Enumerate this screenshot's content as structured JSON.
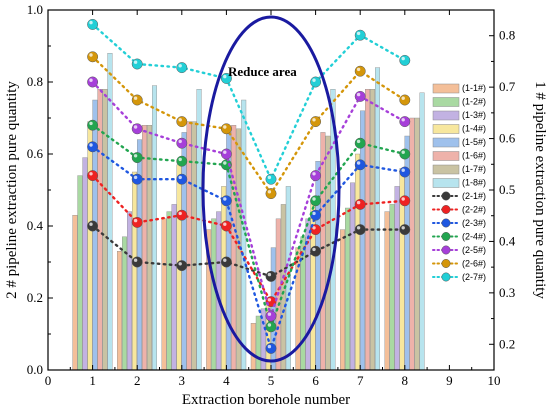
{
  "chart_data": {
    "type": "bar+line",
    "x_ticks": [
      "0",
      "1",
      "2",
      "3",
      "4",
      "5",
      "6",
      "7",
      "8",
      "9",
      "10"
    ],
    "y_left_ticks": [
      "0.0",
      "0.2",
      "0.4",
      "0.6",
      "0.8",
      "1.0"
    ],
    "y_right_ticks": [
      "0.2",
      "0.3",
      "0.4",
      "0.5",
      "0.6",
      "0.7",
      "0.8"
    ],
    "xlabel": "Extraction borehole number",
    "ylabel_left": "2 # pipeline extraction pure quantity",
    "ylabel_right": "1 # pipeline extraction pure quantity",
    "xlim": [
      0,
      10
    ],
    "ylim_left": [
      0,
      1.0
    ],
    "ylim_right": [
      0.15,
      0.85
    ],
    "annotation": "Reduce area",
    "categories": [
      1,
      2,
      3,
      4,
      5,
      6,
      7,
      8
    ],
    "bar_series": [
      {
        "name": "(1-1#)",
        "color": "#f4bf99",
        "values": [
          0.43,
          0.33,
          0.42,
          0.39,
          0.13,
          0.34,
          0.39,
          0.44
        ]
      },
      {
        "name": "(1-2#)",
        "color": "#a9d9a2",
        "values": [
          0.54,
          0.37,
          0.44,
          0.42,
          0.15,
          0.37,
          0.45,
          0.46
        ]
      },
      {
        "name": "(1-3#)",
        "color": "#c2b2e2",
        "values": [
          0.59,
          0.44,
          0.46,
          0.44,
          0.17,
          0.42,
          0.52,
          0.51
        ]
      },
      {
        "name": "(1-4#)",
        "color": "#f7e79d",
        "values": [
          0.69,
          0.55,
          0.57,
          0.51,
          0.2,
          0.47,
          0.6,
          0.56
        ]
      },
      {
        "name": "(1-5#)",
        "color": "#9fc1ec",
        "values": [
          0.75,
          0.64,
          0.66,
          0.66,
          0.34,
          0.58,
          0.72,
          0.65
        ]
      },
      {
        "name": "(1-6#)",
        "color": "#eeb2aa",
        "values": [
          0.78,
          0.68,
          0.69,
          0.68,
          0.42,
          0.66,
          0.78,
          0.7
        ]
      },
      {
        "name": "(1-7#)",
        "color": "#c9c3a3",
        "values": [
          0.78,
          0.68,
          0.69,
          0.67,
          0.46,
          0.65,
          0.78,
          0.7
        ]
      },
      {
        "name": "(1-8#)",
        "color": "#b7e4ee",
        "values": [
          0.88,
          0.79,
          0.78,
          0.75,
          0.51,
          0.78,
          0.84,
          0.77
        ]
      }
    ],
    "line_series": [
      {
        "name": "(2-1#)",
        "color": "#3a3a3a",
        "values": [
          0.4,
          0.3,
          0.29,
          0.3,
          0.26,
          0.33,
          0.39,
          0.39
        ]
      },
      {
        "name": "(2-2#)",
        "color": "#ee2222",
        "values": [
          0.54,
          0.41,
          0.43,
          0.4,
          0.19,
          0.39,
          0.46,
          0.47
        ]
      },
      {
        "name": "(2-3#)",
        "color": "#1f57e0",
        "values": [
          0.62,
          0.53,
          0.53,
          0.47,
          0.06,
          0.43,
          0.57,
          0.55
        ]
      },
      {
        "name": "(2-4#)",
        "color": "#22a550",
        "values": [
          0.68,
          0.59,
          0.58,
          0.57,
          0.12,
          0.47,
          0.63,
          0.6
        ]
      },
      {
        "name": "(2-5#)",
        "color": "#a63fd9",
        "values": [
          0.8,
          0.67,
          0.63,
          0.6,
          0.15,
          0.54,
          0.76,
          0.69
        ]
      },
      {
        "name": "(2-6#)",
        "color": "#d4960a",
        "values": [
          0.87,
          0.75,
          0.69,
          0.67,
          0.49,
          0.69,
          0.83,
          0.75
        ]
      },
      {
        "name": "(2-7#)",
        "color": "#22cfd6",
        "values": [
          0.96,
          0.85,
          0.84,
          0.81,
          0.53,
          0.8,
          0.93,
          0.86
        ]
      }
    ],
    "ellipse_color": "#1a1aa0"
  }
}
